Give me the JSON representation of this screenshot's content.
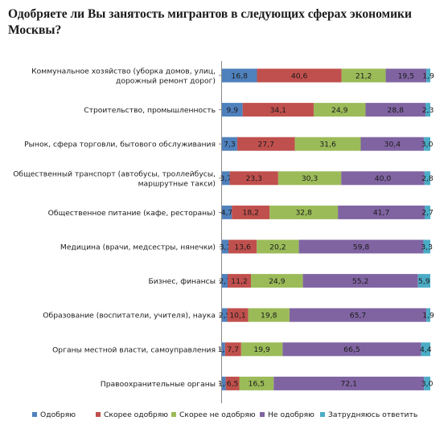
{
  "chart_data": {
    "type": "bar",
    "orientation": "horizontal",
    "stacked": "percent",
    "title": "Одобряете ли Вы занятость мигрантов в следующих сферах экономики Москвы?",
    "categories": [
      [
        "Коммунальное хозяйство (уборка домов, улиц,",
        "дорожный ремонт дорог)"
      ],
      [
        "Строительство, промышленность"
      ],
      [
        "Рынок, сфера торговли, бытового обслуживания"
      ],
      [
        "Общественный транспорт (автобусы, троллейбусы,",
        "маршрутные такси)"
      ],
      [
        "Общественное питание (кафе, рестораны)"
      ],
      [
        "Медицина (врачи, медсестры, нянечки)"
      ],
      [
        "Бизнес, финансы"
      ],
      [
        "Образование (воспитатели, учителя), наука"
      ],
      [
        "Органы местной власти, самоуправления"
      ],
      [
        "Правоохранительные органы"
      ]
    ],
    "series": [
      {
        "name": "Одобряю",
        "color": "#4f81bd",
        "values": [
          16.8,
          9.9,
          7.3,
          3.7,
          4.7,
          3.1,
          2.7,
          2.5,
          1.5,
          1.8
        ]
      },
      {
        "name": "Скорее одобряю",
        "color": "#c0504d",
        "values": [
          40.6,
          34.1,
          27.7,
          23.3,
          18.2,
          13.6,
          11.2,
          10.1,
          7.7,
          6.5
        ]
      },
      {
        "name": "Скорее не одобряю",
        "color": "#9bbb59",
        "values": [
          21.2,
          24.9,
          31.6,
          30.3,
          32.8,
          20.2,
          24.9,
          19.8,
          19.9,
          16.5
        ]
      },
      {
        "name": "Не одобряю",
        "color": "#8064a2",
        "values": [
          19.5,
          28.8,
          30.4,
          40.0,
          41.7,
          59.8,
          55.2,
          65.7,
          66.5,
          72.1
        ]
      },
      {
        "name": "Затрудняюсь ответить",
        "color": "#4bacc6",
        "values": [
          1.9,
          2.3,
          3.0,
          2.8,
          2.7,
          3.3,
          5.9,
          1.9,
          4.4,
          3.0
        ]
      }
    ],
    "xlim": [
      0,
      100
    ],
    "grid": false,
    "legend_position": "bottom"
  }
}
